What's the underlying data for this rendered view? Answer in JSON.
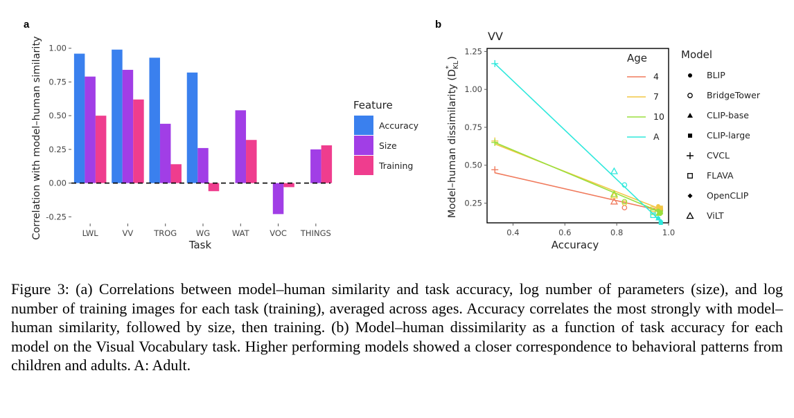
{
  "figure": {
    "panel_a_letter": "a",
    "panel_b_letter": "b",
    "caption": "Figure 3: (a) Correlations between model–human similarity and task accuracy, log number of parameters (size), and log number of training images for each task (training), averaged across ages. Accuracy correlates the most strongly with model–human similarity, followed by size, then training. (b) Model–human dissimilarity as a function of task accuracy for each model on the Visual Vocabulary task. Higher performing models showed a closer correspondence to behavioral patterns from children and adults. A: Adult."
  },
  "colors": {
    "accuracy": "#3a80ee",
    "size": "#a13ee6",
    "training": "#ef3d8e",
    "age_4": "#f07a5c",
    "age_7": "#f2c744",
    "age_10": "#9adf3c",
    "age_A": "#2ee8dc"
  },
  "chart_data": [
    {
      "type": "bar",
      "panel": "a",
      "title": "",
      "xlabel": "Task",
      "ylabel": "Correlation with model–human similarity",
      "categories": [
        "LWL",
        "VV",
        "TROG",
        "WG",
        "WAT",
        "VOC",
        "THINGS"
      ],
      "ylim": [
        -0.3,
        1.05
      ],
      "yticks": [
        -0.25,
        0.0,
        0.25,
        0.5,
        0.75,
        1.0
      ],
      "ytick_labels": [
        "-0.25",
        "0.00",
        "0.25",
        "0.50",
        "0.75",
        "1.00"
      ],
      "zero_line": "dashed",
      "legend_title": "Feature",
      "series": [
        {
          "name": "Accuracy",
          "color_key": "accuracy",
          "values": [
            0.96,
            0.99,
            0.93,
            0.82,
            null,
            null,
            null
          ]
        },
        {
          "name": "Size",
          "color_key": "size",
          "values": [
            0.79,
            0.84,
            0.44,
            0.26,
            0.54,
            -0.23,
            0.25
          ]
        },
        {
          "name": "Training",
          "color_key": "training",
          "values": [
            0.5,
            0.62,
            0.14,
            -0.06,
            0.32,
            -0.03,
            0.28
          ]
        }
      ]
    },
    {
      "type": "scatter",
      "panel": "b",
      "title": "VV",
      "xlabel": "Accuracy",
      "ylabel_main": "Model–human dissimilarity (D",
      "ylabel_sub": "KL",
      "ylabel_sup": "*",
      "ylabel_end": ")",
      "xlim": [
        0.3,
        1.0
      ],
      "ylim": [
        0.12,
        1.27
      ],
      "xticks": [
        0.4,
        0.6,
        0.8,
        1.0
      ],
      "xtick_labels": [
        "0.4",
        "0.6",
        "0.8",
        "1.0"
      ],
      "yticks": [
        0.25,
        0.5,
        0.75,
        1.0,
        1.25
      ],
      "ytick_labels": [
        "0.25",
        "0.50",
        "0.75",
        "1.00",
        "1.25"
      ],
      "age_legend_title": "Age",
      "model_legend_title": "Model",
      "ages": [
        {
          "label": "4",
          "color_key": "age_4",
          "fit": [
            [
              0.33,
              0.45
            ],
            [
              0.97,
              0.2
            ]
          ],
          "points": {
            "CVCL": [
              0.33,
              0.47
            ],
            "ViLT": [
              0.79,
              0.26
            ],
            "BridgeTower": [
              0.83,
              0.22
            ],
            "FLAVA": [
              0.94,
              0.2
            ],
            "BLIP": [
              0.96,
              0.22
            ],
            "CLIP-base": [
              0.96,
              0.21
            ],
            "CLIP-large": [
              0.97,
              0.21
            ],
            "OpenCLIP": [
              0.97,
              0.2
            ]
          }
        },
        {
          "label": "7",
          "color_key": "age_7",
          "fit": [
            [
              0.33,
              0.64
            ],
            [
              0.97,
              0.21
            ]
          ],
          "points": {
            "CVCL": [
              0.33,
              0.66
            ],
            "ViLT": [
              0.79,
              0.3
            ],
            "BridgeTower": [
              0.83,
              0.25
            ],
            "FLAVA": [
              0.94,
              0.21
            ],
            "BLIP": [
              0.96,
              0.23
            ],
            "CLIP-base": [
              0.96,
              0.22
            ],
            "CLIP-large": [
              0.97,
              0.22
            ],
            "OpenCLIP": [
              0.97,
              0.21
            ]
          }
        },
        {
          "label": "10",
          "color_key": "age_10",
          "fit": [
            [
              0.33,
              0.65
            ],
            [
              0.97,
              0.19
            ]
          ],
          "points": {
            "CVCL": [
              0.33,
              0.65
            ],
            "ViLT": [
              0.79,
              0.31
            ],
            "BridgeTower": [
              0.83,
              0.26
            ],
            "FLAVA": [
              0.94,
              0.19
            ],
            "BLIP": [
              0.96,
              0.2
            ],
            "CLIP-base": [
              0.96,
              0.18
            ],
            "CLIP-large": [
              0.97,
              0.19
            ],
            "OpenCLIP": [
              0.97,
              0.18
            ]
          }
        },
        {
          "label": "A",
          "color_key": "age_A",
          "fit": [
            [
              0.33,
              1.17
            ],
            [
              0.97,
              0.13
            ]
          ],
          "points": {
            "CVCL": [
              0.33,
              1.17
            ],
            "ViLT": [
              0.79,
              0.46
            ],
            "BridgeTower": [
              0.83,
              0.37
            ],
            "FLAVA": [
              0.94,
              0.17
            ],
            "BLIP": [
              0.96,
              0.15
            ],
            "CLIP-base": [
              0.96,
              0.15
            ],
            "CLIP-large": [
              0.97,
              0.12
            ],
            "OpenCLIP": [
              0.97,
              0.13
            ]
          }
        }
      ],
      "models": [
        {
          "name": "BLIP",
          "shape": "circle"
        },
        {
          "name": "BridgeTower",
          "shape": "circle-open"
        },
        {
          "name": "CLIP-base",
          "shape": "triangle"
        },
        {
          "name": "CLIP-large",
          "shape": "square"
        },
        {
          "name": "CVCL",
          "shape": "plus"
        },
        {
          "name": "FLAVA",
          "shape": "square-open"
        },
        {
          "name": "OpenCLIP",
          "shape": "diamond"
        },
        {
          "name": "ViLT",
          "shape": "triangle-open"
        }
      ]
    }
  ]
}
